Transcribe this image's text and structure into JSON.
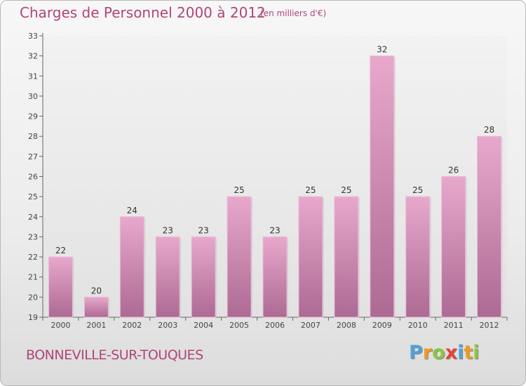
{
  "header": {
    "title": "Charges de Personnel 2000 à 2012",
    "subtitle": "(en milliers d'€)"
  },
  "footer": {
    "city": "BONNEVILLE-SUR-TOUQUES",
    "logo_letters": [
      "P",
      "r",
      "o",
      "x",
      "i",
      "t",
      "i"
    ],
    "logo_colors": [
      "#4fa3d9",
      "#f29a1f",
      "#8cc63f",
      "#e8423b",
      "#4fa3d9",
      "#f29a1f",
      "#8cc63f"
    ]
  },
  "chart_data": {
    "type": "bar",
    "title": "Charges de Personnel 2000 à 2012",
    "subtitle": "(en milliers d'€)",
    "categories": [
      "2000",
      "2001",
      "2002",
      "2003",
      "2004",
      "2005",
      "2006",
      "2007",
      "2008",
      "2009",
      "2010",
      "2011",
      "2012"
    ],
    "values": [
      22,
      20,
      24,
      23,
      23,
      25,
      23,
      25,
      25,
      32,
      25,
      26,
      28
    ],
    "ylim": [
      19,
      33
    ],
    "yticks": [
      19,
      20,
      21,
      22,
      23,
      24,
      25,
      26,
      27,
      28,
      29,
      30,
      31,
      32,
      33
    ],
    "grid": false,
    "bar_color": "#d98fb8",
    "bar_color_dark": "#b06b95"
  }
}
